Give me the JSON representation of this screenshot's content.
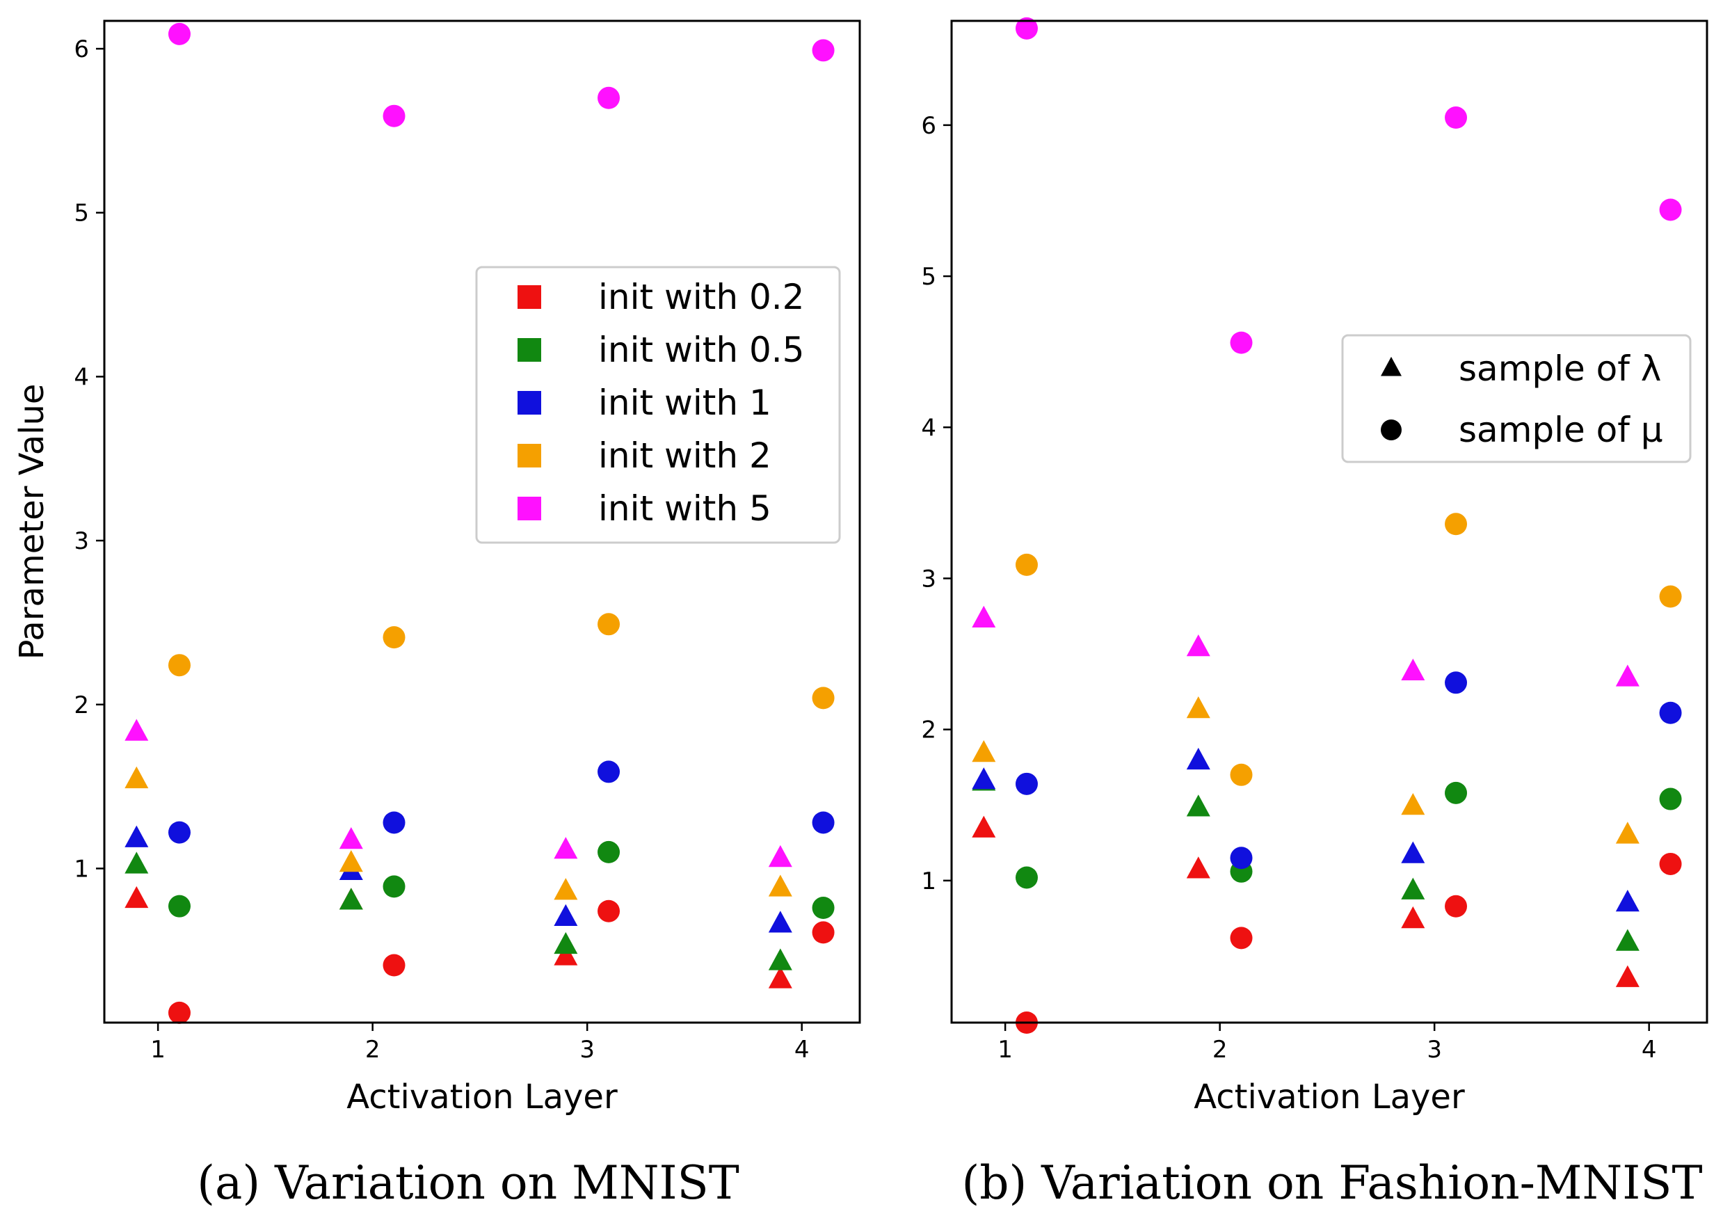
{
  "chart_data": [
    {
      "type": "scatter",
      "caption": "(a) Variation on MNIST",
      "xlabel": "Activation Layer",
      "ylabel": "Parameter Value",
      "xlim": [
        0.75,
        4.27
      ],
      "ylim": [
        0.06,
        6.17
      ],
      "xticks": [
        "1",
        "2",
        "3",
        "4"
      ],
      "yticks": [
        "1",
        "2",
        "3",
        "4",
        "5",
        "6"
      ],
      "legend": {
        "position": "center-right",
        "entries": [
          {
            "label": "init with 0.2",
            "color": "#ee1111"
          },
          {
            "label": "init with 0.5",
            "color": "#118811"
          },
          {
            "label": "init with 1",
            "color": "#1010dd"
          },
          {
            "label": "init with 2",
            "color": "#f5a000"
          },
          {
            "label": "init with 5",
            "color": "#ff11ff"
          }
        ]
      },
      "series": [
        {
          "name": "init with 0.2",
          "color": "#ee1111",
          "lambda": [
            0.81,
            0.8,
            0.46,
            0.32
          ],
          "mu": [
            0.12,
            0.41,
            0.74,
            0.61
          ]
        },
        {
          "name": "init with 0.5",
          "color": "#118811",
          "lambda": [
            1.02,
            0.8,
            0.53,
            0.43
          ],
          "mu": [
            0.77,
            0.89,
            1.1,
            0.76
          ]
        },
        {
          "name": "init with 1",
          "color": "#1010dd",
          "lambda": [
            1.18,
            0.98,
            0.7,
            0.66
          ],
          "mu": [
            1.22,
            1.28,
            1.59,
            1.28
          ]
        },
        {
          "name": "init with 2",
          "color": "#f5a000",
          "lambda": [
            1.54,
            1.03,
            0.86,
            0.88
          ],
          "mu": [
            2.24,
            2.41,
            2.49,
            2.04
          ]
        },
        {
          "name": "init with 5",
          "color": "#ff11ff",
          "lambda": [
            1.83,
            1.17,
            1.11,
            1.06
          ],
          "mu": [
            6.09,
            5.59,
            5.7,
            5.99
          ]
        }
      ]
    },
    {
      "type": "scatter",
      "caption": "(b) Variation on Fashion-MNIST",
      "xlabel": "Activation Layer",
      "ylabel": "",
      "xlim": [
        0.75,
        4.27
      ],
      "ylim": [
        0.06,
        6.69
      ],
      "xticks": [
        "1",
        "2",
        "3",
        "4"
      ],
      "yticks": [
        "1",
        "2",
        "3",
        "4",
        "5",
        "6"
      ],
      "legend": {
        "position": "center-right",
        "entries": [
          {
            "label": "sample of λ",
            "marker": "triangle"
          },
          {
            "label": "sample of μ",
            "marker": "circle"
          }
        ]
      },
      "series": [
        {
          "name": "init with 0.2",
          "color": "#ee1111",
          "lambda": [
            1.34,
            1.07,
            0.74,
            0.35
          ],
          "mu": [
            0.06,
            0.62,
            0.83,
            1.11
          ]
        },
        {
          "name": "init with 0.5",
          "color": "#118811",
          "lambda": [
            1.65,
            1.48,
            0.93,
            0.59
          ],
          "mu": [
            1.02,
            1.06,
            1.58,
            1.54
          ]
        },
        {
          "name": "init with 1",
          "color": "#1010dd",
          "lambda": [
            1.66,
            1.79,
            1.17,
            0.85
          ],
          "mu": [
            1.64,
            1.15,
            2.31,
            2.11
          ]
        },
        {
          "name": "init with 2",
          "color": "#f5a000",
          "lambda": [
            1.84,
            2.13,
            1.49,
            1.3
          ],
          "mu": [
            3.09,
            1.7,
            3.36,
            2.88
          ]
        },
        {
          "name": "init with 5",
          "color": "#ff11ff",
          "lambda": [
            2.73,
            2.54,
            2.38,
            2.34
          ],
          "mu": [
            6.64,
            4.56,
            6.05,
            5.44
          ]
        }
      ]
    }
  ]
}
